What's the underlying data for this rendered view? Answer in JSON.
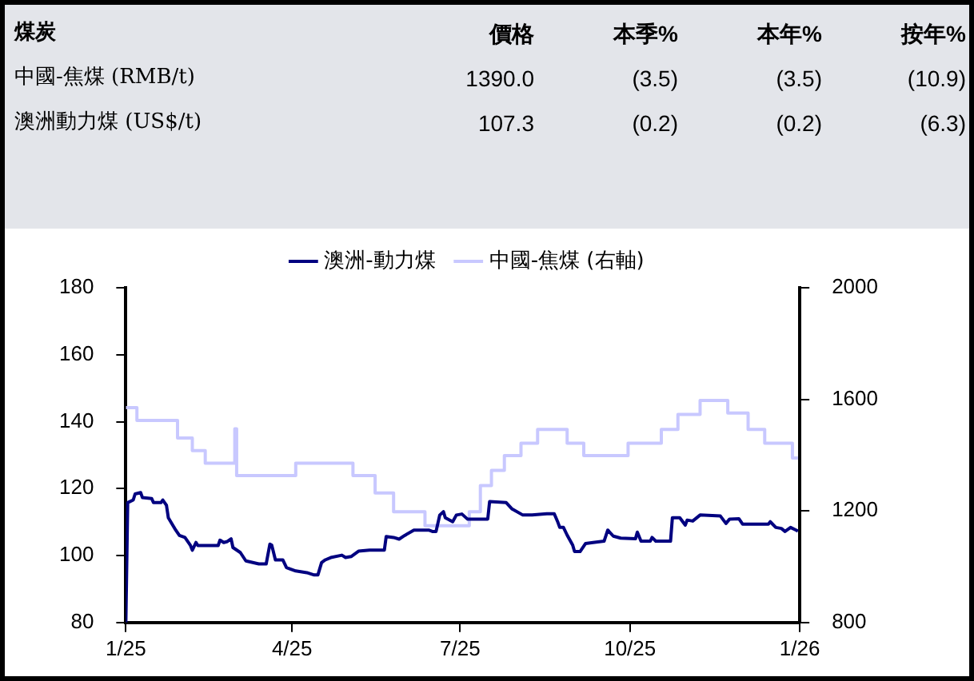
{
  "chart_data": [
    {
      "type": "other",
      "annotations": [
        "煤炭",
        "價格",
        "本季%",
        "本年%",
        "按年%",
        "中國-焦煤 (RMB/t)",
        "1390.0",
        "(3.5)",
        "(3.5)",
        "(10.9)",
        "澳洲動力煤 (US$/t)",
        "107.3",
        "(0.2)",
        "(0.2)",
        "(6.3)"
      ]
    },
    {
      "type": "line",
      "legend": "top",
      "grid": false,
      "marker": "none",
      "xlim": [
        "2025-01-01",
        "2026-01-01"
      ],
      "xticks": [
        {
          "value": "2025-01-01",
          "label": "1/25"
        },
        {
          "value": "2025-04-01",
          "label": "4/25"
        },
        {
          "value": "2025-07-01",
          "label": "7/25"
        },
        {
          "value": "2025-10-01",
          "label": "10/25"
        },
        {
          "value": "2026-01-01",
          "label": "1/26"
        }
      ],
      "ylim": [
        80,
        180
      ],
      "yticks": [
        80,
        100,
        120,
        140,
        160,
        180
      ],
      "y2lim": [
        800,
        2000
      ],
      "y2ticks": [
        800,
        1200,
        1600,
        2000
      ],
      "series": [
        {
          "name": "澳洲-動力煤",
          "type": "line",
          "color": "#000080",
          "x": [
            "2025-01-01",
            "2025-01-02",
            "2025-01-05",
            "2025-01-06",
            "2025-01-09",
            "2025-01-10",
            "2025-01-15",
            "2025-01-16",
            "2025-01-20",
            "2025-01-21",
            "2025-01-23",
            "2025-01-24",
            "2025-01-28",
            "2025-01-30",
            "2025-02-02",
            "2025-02-05",
            "2025-02-06",
            "2025-02-08",
            "2025-02-09",
            "2025-02-20",
            "2025-02-21",
            "2025-02-23",
            "2025-02-25",
            "2025-02-27",
            "2025-02-28",
            "2025-03-04",
            "2025-03-07",
            "2025-03-14",
            "2025-03-18",
            "2025-03-20",
            "2025-03-21",
            "2025-03-23",
            "2025-03-27",
            "2025-03-29",
            "2025-03-31",
            "2025-04-03",
            "2025-04-09",
            "2025-04-13",
            "2025-04-15",
            "2025-04-17",
            "2025-04-19",
            "2025-04-22",
            "2025-04-28",
            "2025-04-30",
            "2025-05-03",
            "2025-05-07",
            "2025-05-13",
            "2025-05-21",
            "2025-05-22",
            "2025-05-26",
            "2025-05-29",
            "2025-06-01",
            "2025-06-06",
            "2025-06-14",
            "2025-06-16",
            "2025-06-18",
            "2025-06-20",
            "2025-06-22",
            "2025-06-23",
            "2025-06-27",
            "2025-06-29",
            "2025-07-02",
            "2025-07-05",
            "2025-07-16",
            "2025-07-17",
            "2025-07-26",
            "2025-07-29",
            "2025-08-04",
            "2025-08-09",
            "2025-08-17",
            "2025-08-21",
            "2025-08-23",
            "2025-08-24",
            "2025-08-26",
            "2025-08-28",
            "2025-08-31",
            "2025-09-01",
            "2025-09-04",
            "2025-09-07",
            "2025-09-11",
            "2025-09-17",
            "2025-09-19",
            "2025-09-22",
            "2025-09-26",
            "2025-10-04",
            "2025-10-05",
            "2025-10-07",
            "2025-10-12",
            "2025-10-13",
            "2025-10-15",
            "2025-10-23",
            "2025-10-24",
            "2025-10-28",
            "2025-10-31",
            "2025-11-01",
            "2025-11-04",
            "2025-11-08",
            "2025-11-19",
            "2025-11-22",
            "2025-11-24",
            "2025-11-29",
            "2025-12-01",
            "2025-12-15",
            "2025-12-16",
            "2025-12-19",
            "2025-12-22",
            "2025-12-24",
            "2025-12-27",
            "2025-12-30",
            "2025-12-31"
          ],
          "values": [
            80,
            115.8,
            116.6,
            118.4,
            118.8,
            117.3,
            117,
            115.8,
            115.8,
            116.6,
            115,
            111.3,
            107.6,
            106,
            105.4,
            103,
            101.6,
            103.9,
            103,
            103,
            104.6,
            103.9,
            104.2,
            105,
            102.4,
            100.9,
            98.4,
            97.5,
            97.5,
            103.4,
            103.1,
            98.7,
            98.7,
            96.4,
            96,
            95.4,
            94.9,
            94.2,
            94.2,
            97.9,
            98.7,
            99.4,
            100.1,
            99.4,
            99.7,
            101.3,
            101.6,
            101.6,
            105.7,
            105.4,
            104.9,
            106,
            107.6,
            107.6,
            107.2,
            107.2,
            112.1,
            113.1,
            111.3,
            110.1,
            112.1,
            112.4,
            110.9,
            110.9,
            116.1,
            115.8,
            114,
            112.1,
            112.1,
            112.5,
            112.5,
            109.9,
            108.4,
            108.4,
            106.1,
            103.1,
            101.2,
            101.2,
            103.6,
            103.9,
            104.3,
            107.6,
            105.8,
            105.2,
            105,
            107,
            104.3,
            104.3,
            105.4,
            104.3,
            104.3,
            111.3,
            111.3,
            109.1,
            110.6,
            110.3,
            112.1,
            111.8,
            109.6,
            110.9,
            111,
            109.4,
            109.4,
            110.1,
            108.4,
            108.1,
            107.2,
            108.4,
            107.6,
            107.3
          ]
        },
        {
          "name": "中國-焦煤 (右軸)",
          "type": "step",
          "axis": "y2",
          "color": "#c8c8ff",
          "x": [
            "2025-01-01",
            "2025-01-07",
            "2025-01-29",
            "2025-02-06",
            "2025-02-13",
            "2025-03-01",
            "2025-03-02",
            "2025-04-03",
            "2025-05-04",
            "2025-05-16",
            "2025-05-26",
            "2025-06-12",
            "2025-07-06",
            "2025-07-12",
            "2025-07-18",
            "2025-07-25",
            "2025-08-03",
            "2025-08-12",
            "2025-08-28",
            "2025-09-06",
            "2025-09-30",
            "2025-10-18",
            "2025-10-27",
            "2025-11-08",
            "2025-11-23",
            "2025-12-04",
            "2025-12-13",
            "2025-12-28",
            "2025-12-31"
          ],
          "values": [
            1570,
            1524,
            1461,
            1416,
            1371,
            1494,
            1327,
            1371,
            1327,
            1264,
            1197,
            1147,
            1197,
            1291,
            1345,
            1398,
            1443,
            1492,
            1443,
            1398,
            1443,
            1492,
            1546,
            1596,
            1551,
            1492,
            1443,
            1390,
            1390
          ]
        }
      ]
    }
  ]
}
